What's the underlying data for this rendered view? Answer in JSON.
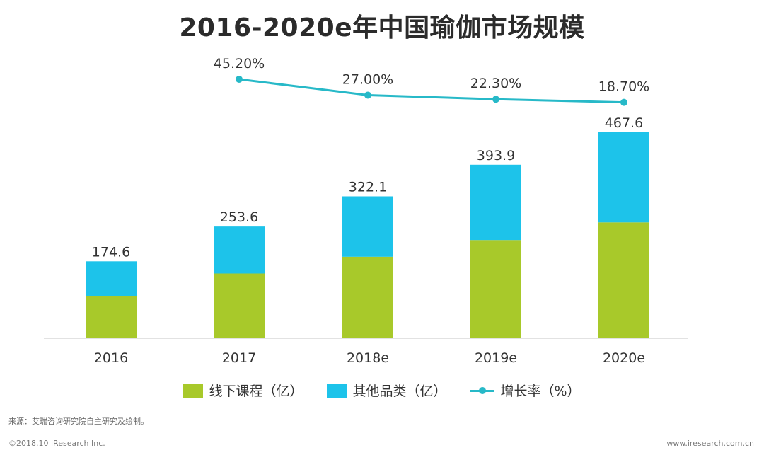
{
  "chart_data": {
    "type": "bar",
    "title": "2016-2020e年中国瑜伽市场规模",
    "categories": [
      "2016",
      "2017",
      "2018e",
      "2019e",
      "2020e"
    ],
    "totals": [
      "174.6",
      "253.6",
      "322.1",
      "393.9",
      "467.6"
    ],
    "series": [
      {
        "name": "线下课程（亿）",
        "kind": "bar",
        "color": "#a8c92a",
        "values": [
          95,
          147,
          185,
          223,
          263
        ]
      },
      {
        "name": "其他品类（亿）",
        "kind": "bar",
        "color": "#1dc3ea",
        "values": [
          79.6,
          106.6,
          137.1,
          170.9,
          204.6
        ]
      },
      {
        "name": "增长率（%）",
        "kind": "line",
        "color": "#27b9c8",
        "values": [
          null,
          45.2,
          27.0,
          22.3,
          18.7
        ],
        "labels": [
          "",
          "45.20%",
          "27.00%",
          "22.30%",
          "18.70%"
        ]
      }
    ],
    "ylim": [
      0,
      500
    ],
    "xlabel": "",
    "ylabel": ""
  },
  "footer": {
    "source": "来源：艾瑞咨询研究院自主研究及绘制。",
    "copyright": "©2018.10 iResearch Inc.",
    "website": "www.iresearch.com.cn"
  }
}
